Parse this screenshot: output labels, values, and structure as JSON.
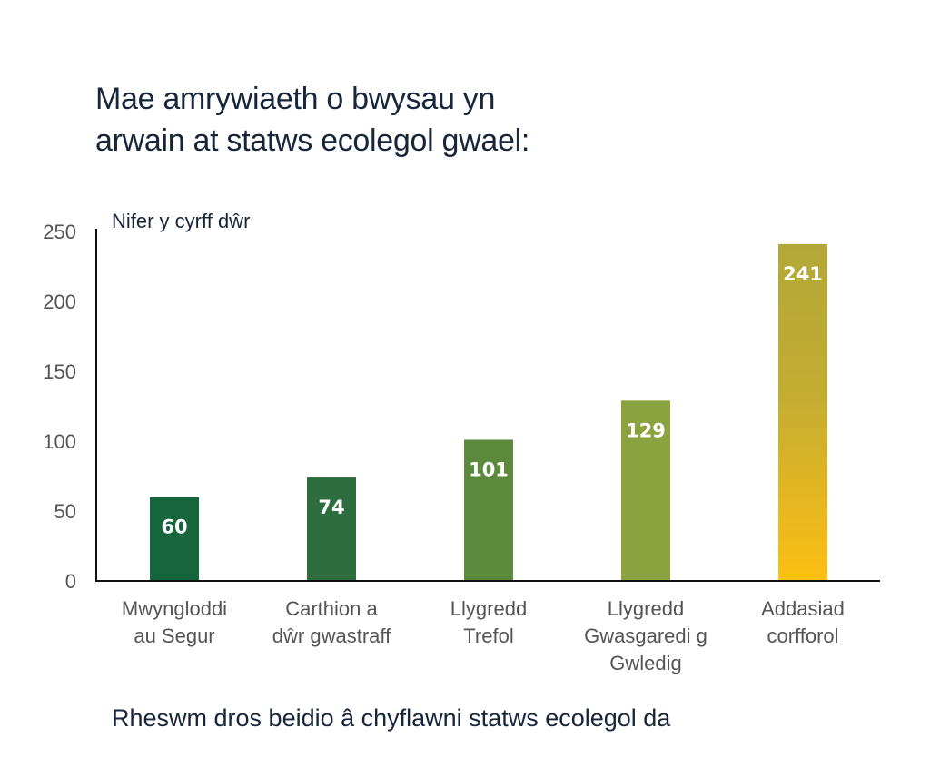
{
  "chart_data": {
    "type": "bar",
    "title": "Mae amrywiaeth o bwysau yn arwain at statws ecolegol gwael:",
    "title_lines": [
      "Mae amrywiaeth o bwysau yn",
      "arwain at statws ecolegol gwael:"
    ],
    "ylabel": "Nifer y cyrff dŵr",
    "xlabel": "Rheswm dros beidio â chyflawni statws ecolegol da",
    "ylim": [
      0,
      250
    ],
    "yticks": [
      0,
      50,
      100,
      150,
      200,
      250
    ],
    "grid": false,
    "categories": [
      [
        "Mwyngloddi",
        "au Segur"
      ],
      [
        "Carthion a",
        "dŵr gwastraff"
      ],
      [
        "Llygredd",
        "Trefol"
      ],
      [
        "Llygredd",
        "Gwasgaredi g",
        "Gwledig"
      ],
      [
        "Addasiad",
        "corfforol"
      ]
    ],
    "values": [
      60,
      74,
      101,
      129,
      241
    ],
    "data_labels": [
      "60",
      "74",
      "101",
      "129",
      "241"
    ],
    "colors": [
      "#16653c",
      "#2e6e3e",
      "#5c8a3c",
      "#8aa33e",
      "gradient:#b2a838-#fdbf13"
    ]
  }
}
